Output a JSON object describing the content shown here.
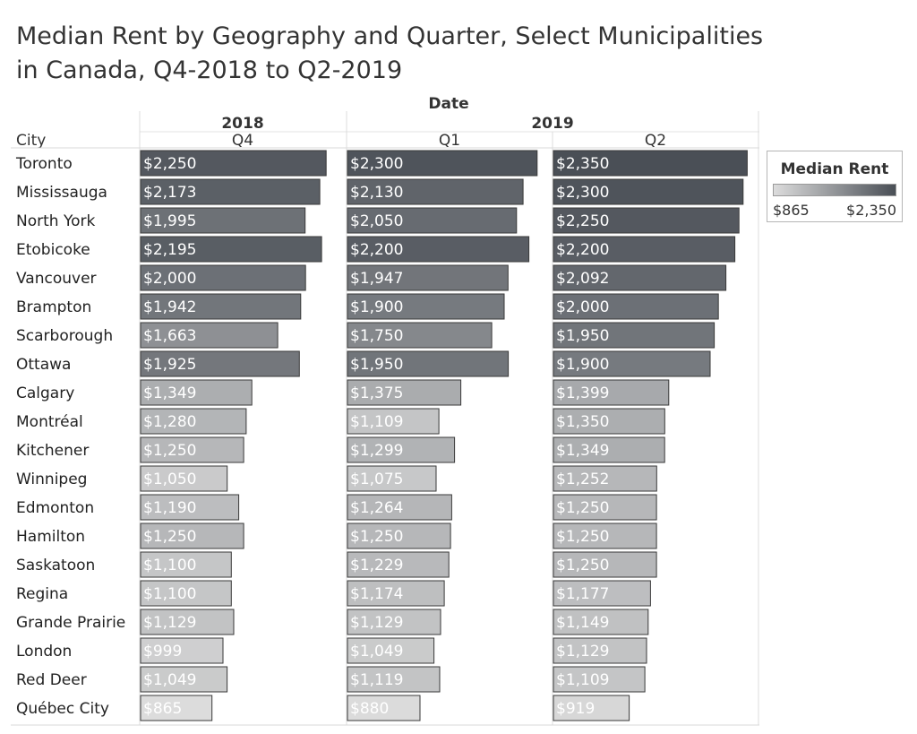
{
  "chart_data": {
    "type": "bar",
    "title_line1": "Median Rent by Geography and Quarter, Select Municipalities",
    "title_line2": "in Canada, Q4-2018 to Q2-2019",
    "column_header": "Date",
    "row_header": "City",
    "years": [
      {
        "label": "2018",
        "span": 1
      },
      {
        "label": "2019",
        "span": 2
      }
    ],
    "quarters": [
      "Q4",
      "Q1",
      "Q2"
    ],
    "categories": [
      "Toronto",
      "Mississauga",
      "North York",
      "Etobicoke",
      "Vancouver",
      "Brampton",
      "Scarborough",
      "Ottawa",
      "Calgary",
      "Montréal",
      "Kitchener",
      "Winnipeg",
      "Edmonton",
      "Hamilton",
      "Saskatoon",
      "Regina",
      "Grande Prairie",
      "London",
      "Red Deer",
      "Québec City"
    ],
    "series": [
      {
        "quarter": "Q4 2018",
        "values": [
          2250,
          2173,
          1995,
          2195,
          2000,
          1942,
          1663,
          1925,
          1349,
          1280,
          1250,
          1050,
          1190,
          1250,
          1100,
          1100,
          1129,
          999,
          1049,
          865
        ],
        "labels": [
          "$2,250",
          "$2,173",
          "$1,995",
          "$2,195",
          "$2,000",
          "$1,942",
          "$1,663",
          "$1,925",
          "$1,349",
          "$1,280",
          "$1,250",
          "$1,050",
          "$1,190",
          "$1,250",
          "$1,100",
          "$1,100",
          "$1,129",
          "$999",
          "$1,049",
          "$865"
        ]
      },
      {
        "quarter": "Q1 2019",
        "values": [
          2300,
          2130,
          2050,
          2200,
          1947,
          1900,
          1750,
          1950,
          1375,
          1109,
          1299,
          1075,
          1264,
          1250,
          1229,
          1174,
          1129,
          1049,
          1119,
          880
        ],
        "labels": [
          "$2,300",
          "$2,130",
          "$2,050",
          "$2,200",
          "$1,947",
          "$1,900",
          "$1,750",
          "$1,950",
          "$1,375",
          "$1,109",
          "$1,299",
          "$1,075",
          "$1,264",
          "$1,250",
          "$1,229",
          "$1,174",
          "$1,129",
          "$1,049",
          "$1,119",
          "$880"
        ]
      },
      {
        "quarter": "Q2 2019",
        "values": [
          2350,
          2300,
          2250,
          2200,
          2092,
          2000,
          1950,
          1900,
          1399,
          1350,
          1349,
          1252,
          1250,
          1250,
          1250,
          1177,
          1149,
          1129,
          1109,
          919
        ],
        "labels": [
          "$2,350",
          "$2,300",
          "$2,250",
          "$2,200",
          "$2,092",
          "$2,000",
          "$1,950",
          "$1,900",
          "$1,399",
          "$1,350",
          "$1,349",
          "$1,252",
          "$1,250",
          "$1,250",
          "$1,250",
          "$1,177",
          "$1,149",
          "$1,129",
          "$1,109",
          "$919"
        ]
      }
    ],
    "legend": {
      "title": "Median Rent",
      "min_label": "$865",
      "max_label": "$2,350",
      "min_value": 865,
      "max_value": 2350,
      "color_low": "#dcdcdc",
      "color_high": "#4a4f56",
      "placement": "right"
    }
  }
}
